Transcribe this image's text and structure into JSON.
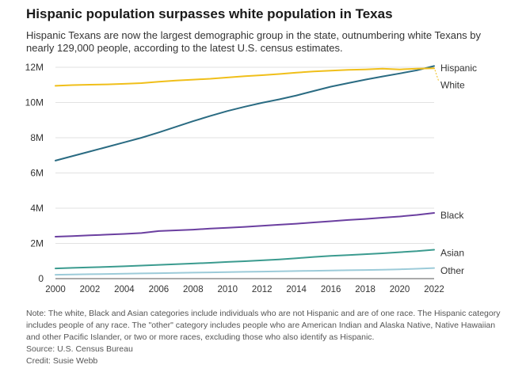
{
  "title": "Hispanic population surpasses white population in Texas",
  "subtitle": "Hispanic Texans are now the largest demographic group in the state, outnumbering white Texans by nearly 129,000 people, according to the latest U.S. census estimates.",
  "note": "Note: The white, Black and Asian categories include individuals who are not Hispanic and are of one race. The Hispanic category includes people of any race. The \"other\" category includes people who are American Indian and Alaska Native, Native Hawaiian and other Pacific Islander, or two or more races, excluding those who also identify as Hispanic.",
  "source": "Source: U.S. Census Bureau",
  "credit": "Credit: Susie Webb",
  "chart_data": {
    "type": "line",
    "x": [
      2000,
      2001,
      2002,
      2003,
      2004,
      2005,
      2006,
      2007,
      2008,
      2009,
      2010,
      2011,
      2012,
      2013,
      2014,
      2015,
      2016,
      2017,
      2018,
      2019,
      2020,
      2021,
      2022
    ],
    "ylim": [
      0,
      12000000
    ],
    "xlim": [
      2000,
      2022
    ],
    "yticks": [
      0,
      2000000,
      4000000,
      6000000,
      8000000,
      10000000,
      12000000
    ],
    "ytick_labels": [
      "0",
      "2M",
      "4M",
      "6M",
      "8M",
      "10M",
      "12M"
    ],
    "xticks": [
      2000,
      2002,
      2004,
      2006,
      2008,
      2010,
      2012,
      2014,
      2016,
      2018,
      2020,
      2022
    ],
    "xtick_labels": [
      "2000",
      "2002",
      "2004",
      "2006",
      "2008",
      "2010",
      "2012",
      "2014",
      "2016",
      "2018",
      "2020",
      "2022"
    ],
    "grid": "horizontal",
    "legend": "direct labels at right",
    "series": [
      {
        "name": "Hispanic",
        "color": "#2a6b82",
        "values": [
          6700000,
          6960000,
          7220000,
          7480000,
          7740000,
          8000000,
          8300000,
          8620000,
          8940000,
          9240000,
          9520000,
          9760000,
          9980000,
          10180000,
          10400000,
          10650000,
          10900000,
          11100000,
          11300000,
          11480000,
          11650000,
          11830000,
          12070000
        ]
      },
      {
        "name": "White",
        "color": "#f0bf1a",
        "values": [
          10950000,
          10990000,
          11010000,
          11030000,
          11060000,
          11100000,
          11180000,
          11250000,
          11300000,
          11350000,
          11420000,
          11490000,
          11550000,
          11620000,
          11700000,
          11760000,
          11810000,
          11850000,
          11880000,
          11920000,
          11880000,
          11920000,
          11940000
        ]
      },
      {
        "name": "Black",
        "color": "#6b3fa0",
        "values": [
          2380000,
          2420000,
          2460000,
          2500000,
          2540000,
          2590000,
          2700000,
          2740000,
          2780000,
          2840000,
          2890000,
          2940000,
          3000000,
          3060000,
          3120000,
          3190000,
          3260000,
          3330000,
          3390000,
          3460000,
          3530000,
          3620000,
          3730000
        ]
      },
      {
        "name": "Asian",
        "color": "#3b9b8f",
        "values": [
          580000,
          610000,
          640000,
          670000,
          700000,
          740000,
          780000,
          820000,
          860000,
          900000,
          950000,
          990000,
          1040000,
          1090000,
          1160000,
          1230000,
          1290000,
          1340000,
          1390000,
          1440000,
          1500000,
          1560000,
          1640000
        ]
      },
      {
        "name": "Other",
        "color": "#9ccbd9",
        "values": [
          220000,
          235000,
          250000,
          265000,
          280000,
          295000,
          310000,
          325000,
          340000,
          355000,
          370000,
          385000,
          400000,
          415000,
          430000,
          445000,
          460000,
          475000,
          490000,
          510000,
          530000,
          560000,
          600000
        ]
      }
    ]
  }
}
